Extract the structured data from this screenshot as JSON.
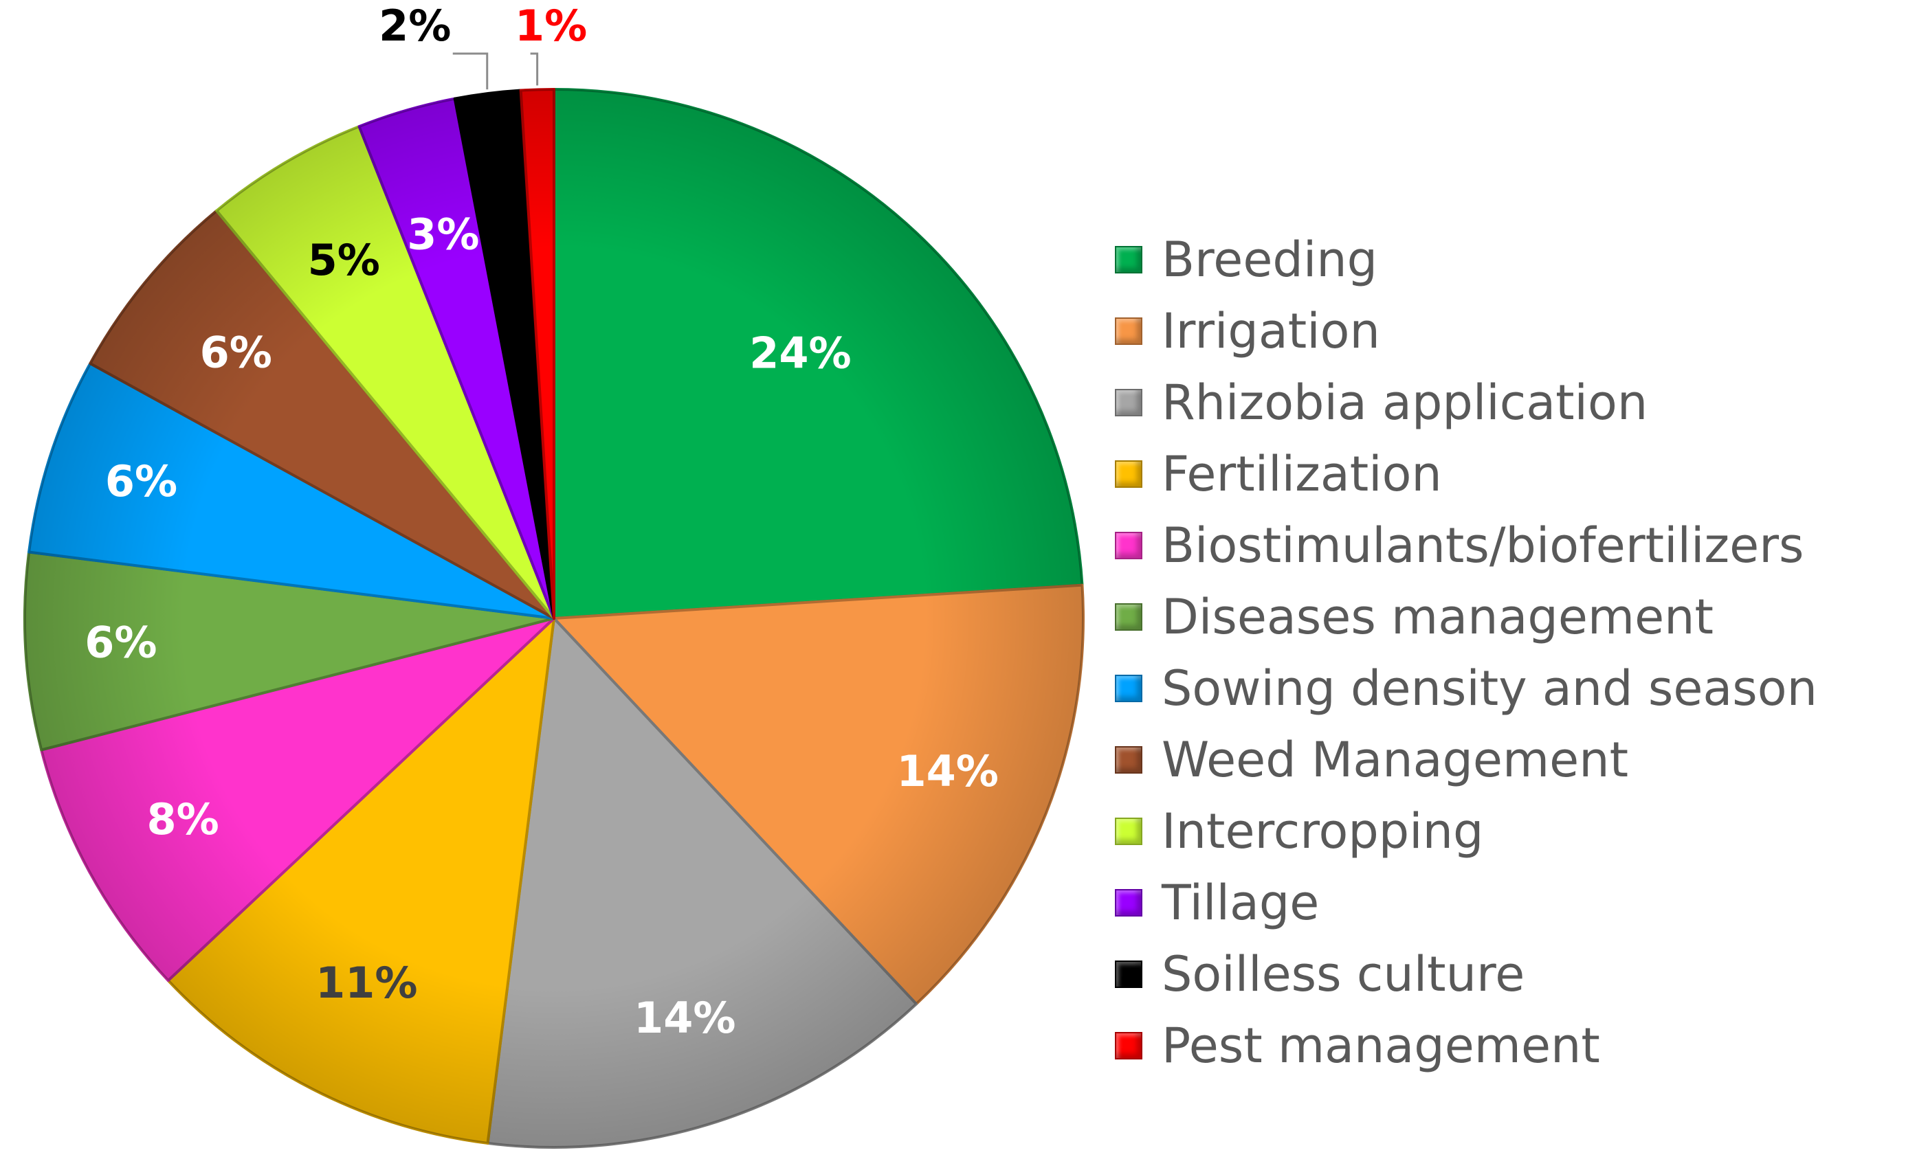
{
  "chart_data": {
    "type": "pie",
    "title": "",
    "legend_position": "right",
    "slices": [
      {
        "name": "Breeding",
        "value": 24,
        "label": "24%",
        "color": "#00B050",
        "label_color": "#FFFFFF"
      },
      {
        "name": "Irrigation",
        "value": 14,
        "label": "14%",
        "color": "#F79646",
        "label_color": "#FFFFFF"
      },
      {
        "name": "Rhizobia application",
        "value": 14,
        "label": "14%",
        "color": "#A6A6A6",
        "label_color": "#FFFFFF"
      },
      {
        "name": "Fertilization",
        "value": 11,
        "label": "11%",
        "color": "#FFC000",
        "label_color": "#404040"
      },
      {
        "name": "Biostimulants/biofertilizers",
        "value": 8,
        "label": "8%",
        "color": "#FF33CC",
        "label_color": "#FFFFFF"
      },
      {
        "name": "Diseases management",
        "value": 6,
        "label": "6%",
        "color": "#70AD47",
        "label_color": "#FFFFFF"
      },
      {
        "name": "Sowing density and season",
        "value": 6,
        "label": "6%",
        "color": "#00A2FF",
        "label_color": "#FFFFFF"
      },
      {
        "name": "Weed Management",
        "value": 6,
        "label": "6%",
        "color": "#A0522D",
        "label_color": "#FFFFFF"
      },
      {
        "name": "Intercropping",
        "value": 5,
        "label": "5%",
        "color": "#CCFF33",
        "label_color": "#000000"
      },
      {
        "name": "Tillage",
        "value": 3,
        "label": "3%",
        "color": "#9900FF",
        "label_color": "#FFFFFF"
      },
      {
        "name": "Soilless culture",
        "value": 2,
        "label": "2%",
        "color": "#000000",
        "label_color": "#000000"
      },
      {
        "name": "Pest management",
        "value": 1,
        "label": "1%",
        "color": "#FF0000",
        "label_color": "#FF0000"
      }
    ]
  }
}
